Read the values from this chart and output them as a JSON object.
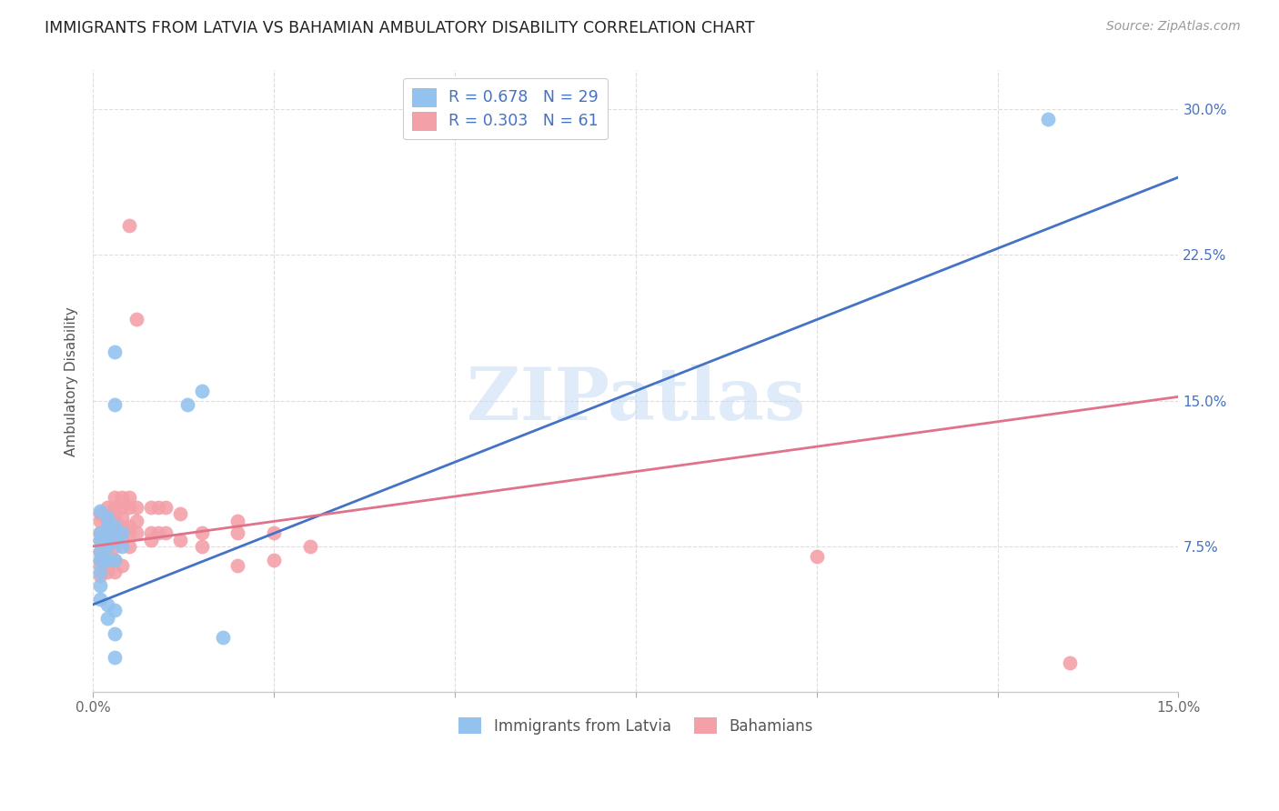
{
  "title": "IMMIGRANTS FROM LATVIA VS BAHAMIAN AMBULATORY DISABILITY CORRELATION CHART",
  "source": "Source: ZipAtlas.com",
  "ylabel": "Ambulatory Disability",
  "xlim": [
    0.0,
    0.15
  ],
  "ylim": [
    0.0,
    0.32
  ],
  "yticks": [
    0.075,
    0.15,
    0.225,
    0.3
  ],
  "xtick_positions": [
    0.0,
    0.025,
    0.05,
    0.075,
    0.1,
    0.125,
    0.15
  ],
  "xtick_labels": [
    "0.0%",
    "",
    "",
    "",
    "",
    "",
    "15.0%"
  ],
  "ytick_labels": [
    "7.5%",
    "15.0%",
    "22.5%",
    "30.0%"
  ],
  "legend_r1": "R = 0.678",
  "legend_n1": "N = 29",
  "legend_r2": "R = 0.303",
  "legend_n2": "N = 61",
  "legend_label1": "Immigrants from Latvia",
  "legend_label2": "Bahamians",
  "blue_color": "#93C2EE",
  "pink_color": "#F4A0A8",
  "line_blue": "#4472C4",
  "line_pink": "#E0728A",
  "blue_line_x": [
    0.0,
    0.15
  ],
  "blue_line_y": [
    0.045,
    0.265
  ],
  "pink_line_x": [
    0.0,
    0.15
  ],
  "pink_line_y": [
    0.075,
    0.152
  ],
  "blue_scatter": [
    [
      0.001,
      0.093
    ],
    [
      0.001,
      0.082
    ],
    [
      0.001,
      0.078
    ],
    [
      0.001,
      0.072
    ],
    [
      0.001,
      0.068
    ],
    [
      0.001,
      0.062
    ],
    [
      0.001,
      0.055
    ],
    [
      0.001,
      0.048
    ],
    [
      0.002,
      0.09
    ],
    [
      0.002,
      0.085
    ],
    [
      0.002,
      0.08
    ],
    [
      0.002,
      0.075
    ],
    [
      0.002,
      0.068
    ],
    [
      0.002,
      0.045
    ],
    [
      0.002,
      0.038
    ],
    [
      0.003,
      0.175
    ],
    [
      0.003,
      0.148
    ],
    [
      0.003,
      0.085
    ],
    [
      0.003,
      0.078
    ],
    [
      0.003,
      0.068
    ],
    [
      0.003,
      0.042
    ],
    [
      0.003,
      0.03
    ],
    [
      0.003,
      0.018
    ],
    [
      0.004,
      0.082
    ],
    [
      0.004,
      0.075
    ],
    [
      0.013,
      0.148
    ],
    [
      0.015,
      0.155
    ],
    [
      0.018,
      0.028
    ],
    [
      0.132,
      0.295
    ]
  ],
  "pink_scatter": [
    [
      0.001,
      0.092
    ],
    [
      0.001,
      0.088
    ],
    [
      0.001,
      0.082
    ],
    [
      0.001,
      0.078
    ],
    [
      0.001,
      0.072
    ],
    [
      0.001,
      0.068
    ],
    [
      0.001,
      0.065
    ],
    [
      0.001,
      0.06
    ],
    [
      0.002,
      0.095
    ],
    [
      0.002,
      0.09
    ],
    [
      0.002,
      0.088
    ],
    [
      0.002,
      0.085
    ],
    [
      0.002,
      0.082
    ],
    [
      0.002,
      0.078
    ],
    [
      0.002,
      0.075
    ],
    [
      0.002,
      0.07
    ],
    [
      0.002,
      0.065
    ],
    [
      0.002,
      0.062
    ],
    [
      0.003,
      0.1
    ],
    [
      0.003,
      0.095
    ],
    [
      0.003,
      0.09
    ],
    [
      0.003,
      0.085
    ],
    [
      0.003,
      0.082
    ],
    [
      0.003,
      0.075
    ],
    [
      0.003,
      0.068
    ],
    [
      0.003,
      0.062
    ],
    [
      0.004,
      0.1
    ],
    [
      0.004,
      0.095
    ],
    [
      0.004,
      0.09
    ],
    [
      0.004,
      0.085
    ],
    [
      0.004,
      0.078
    ],
    [
      0.004,
      0.065
    ],
    [
      0.005,
      0.24
    ],
    [
      0.005,
      0.1
    ],
    [
      0.005,
      0.095
    ],
    [
      0.005,
      0.085
    ],
    [
      0.005,
      0.082
    ],
    [
      0.005,
      0.075
    ],
    [
      0.006,
      0.192
    ],
    [
      0.006,
      0.095
    ],
    [
      0.006,
      0.088
    ],
    [
      0.006,
      0.082
    ],
    [
      0.008,
      0.095
    ],
    [
      0.008,
      0.082
    ],
    [
      0.008,
      0.078
    ],
    [
      0.009,
      0.095
    ],
    [
      0.009,
      0.082
    ],
    [
      0.01,
      0.095
    ],
    [
      0.01,
      0.082
    ],
    [
      0.012,
      0.092
    ],
    [
      0.012,
      0.078
    ],
    [
      0.015,
      0.082
    ],
    [
      0.015,
      0.075
    ],
    [
      0.02,
      0.088
    ],
    [
      0.02,
      0.082
    ],
    [
      0.02,
      0.065
    ],
    [
      0.025,
      0.082
    ],
    [
      0.025,
      0.068
    ],
    [
      0.03,
      0.075
    ],
    [
      0.1,
      0.07
    ],
    [
      0.135,
      0.015
    ]
  ],
  "watermark": "ZIPatlas",
  "background_color": "#FFFFFF",
  "grid_color": "#DDDDDD"
}
